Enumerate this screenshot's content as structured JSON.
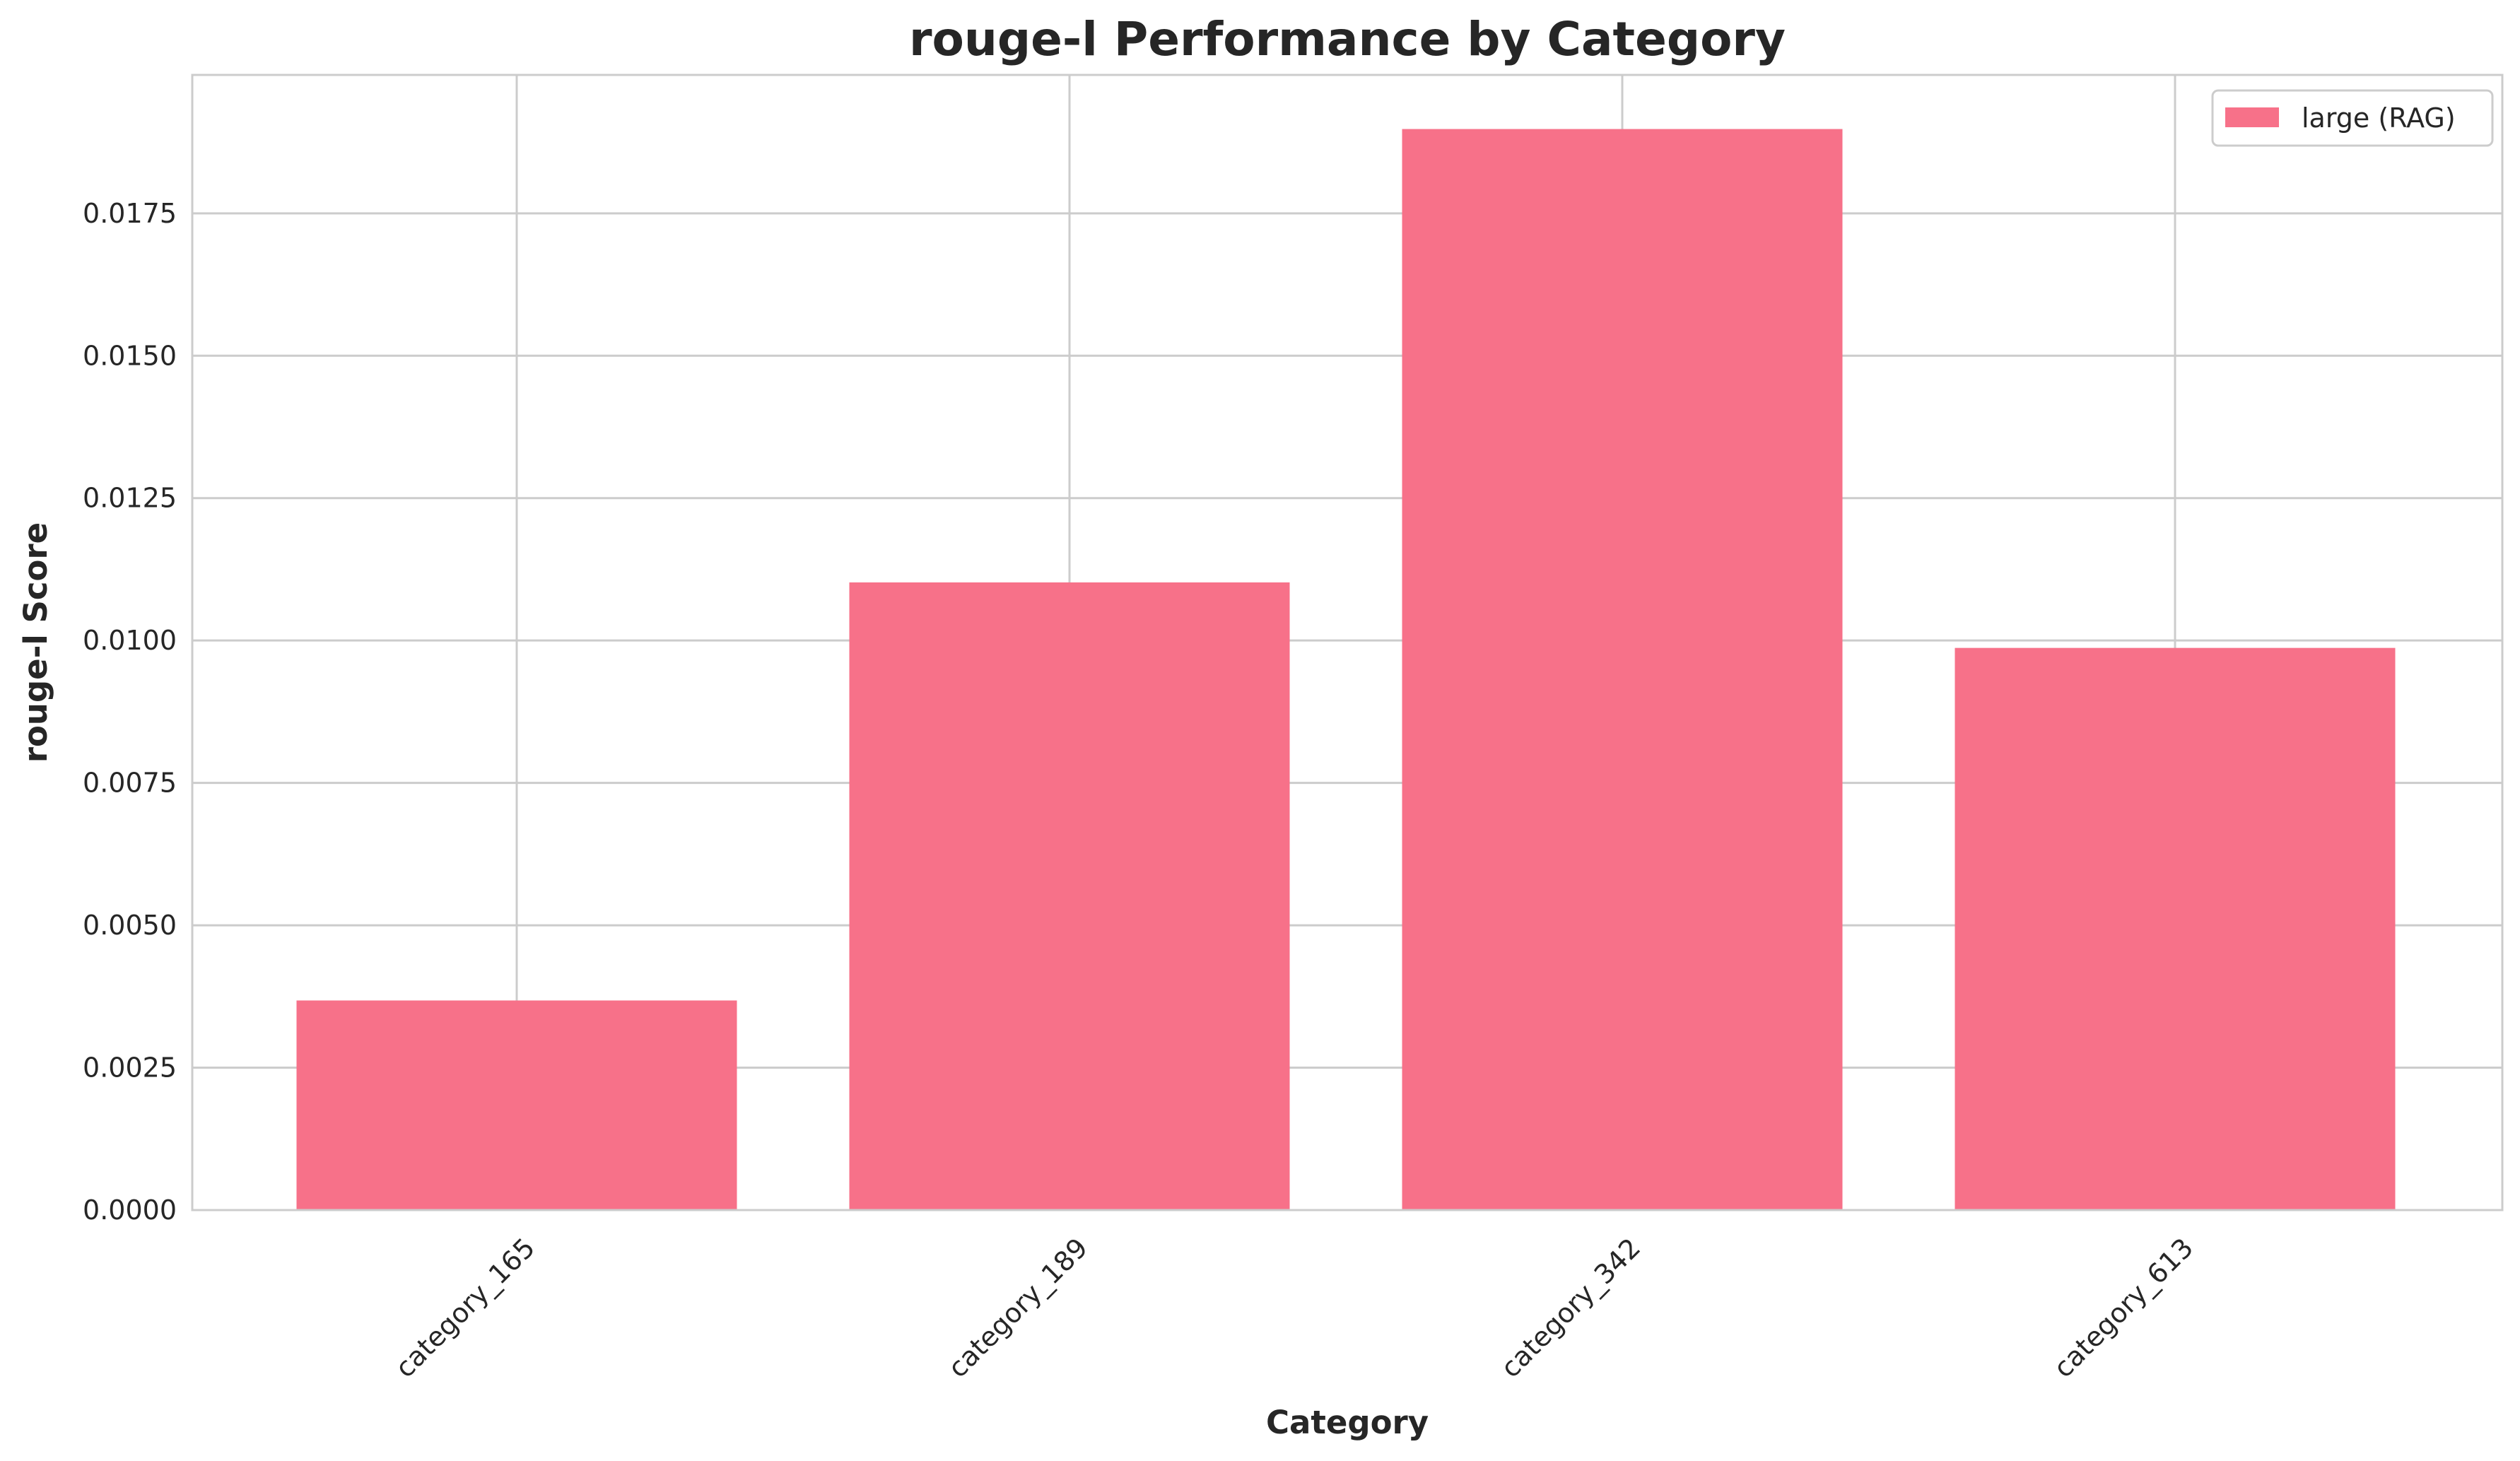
{
  "chart_data": {
    "type": "bar",
    "title": "rouge-l Performance by Category",
    "xlabel": "Category",
    "ylabel": "rouge-l Score",
    "categories": [
      "category_165",
      "category_189",
      "category_342",
      "category_613"
    ],
    "series": [
      {
        "name": "large (RAG)",
        "values": [
          0.00368,
          0.01102,
          0.01898,
          0.00987
        ],
        "color": "#f77189"
      }
    ],
    "yticks": [
      "0.0000",
      "0.0025",
      "0.0050",
      "0.0075",
      "0.0100",
      "0.0125",
      "0.0150",
      "0.0175"
    ],
    "ylim": [
      0,
      0.01993
    ],
    "grid": true,
    "legend_position": "top-right"
  }
}
